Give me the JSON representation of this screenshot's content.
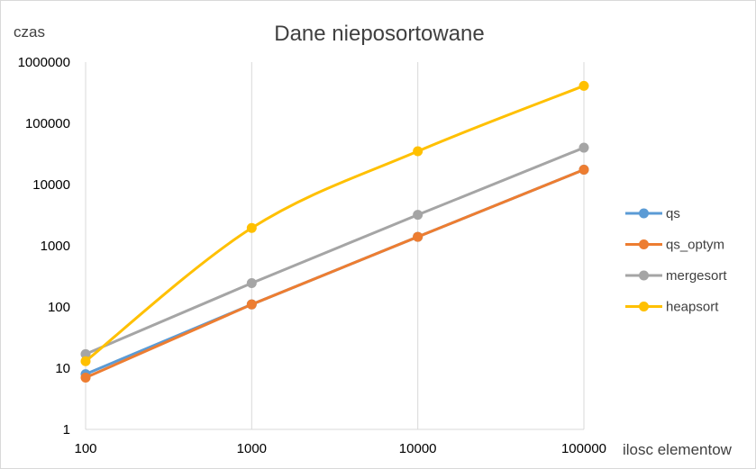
{
  "chart_data": {
    "type": "line",
    "title": "Dane nieposortowane",
    "ylabel": "czas",
    "xlabel": "ilosc elementow",
    "x_scale": "log",
    "y_scale": "log",
    "x": [
      100,
      1000,
      10000,
      100000
    ],
    "x_tick_labels": [
      "100",
      "1000",
      "10000",
      "100000"
    ],
    "y_tick_labels": [
      "1",
      "10",
      "100",
      "1000",
      "10000",
      "100000",
      "1000000"
    ],
    "ylim": [
      1,
      1000000
    ],
    "xlim": [
      100,
      100000
    ],
    "grid": "vertical",
    "legend_position": "right",
    "series": [
      {
        "name": "qs",
        "color": "#5b9bd5",
        "smooth": false,
        "values": [
          8,
          110,
          1400,
          17500
        ]
      },
      {
        "name": "qs_optym",
        "color": "#ed7d31",
        "smooth": false,
        "values": [
          7,
          110,
          1400,
          17500
        ]
      },
      {
        "name": "mergesort",
        "color": "#a5a5a5",
        "smooth": false,
        "values": [
          17,
          245,
          3200,
          40000
        ]
      },
      {
        "name": "heapsort",
        "color": "#ffc000",
        "smooth": true,
        "values": [
          13,
          1950,
          35000,
          410000
        ]
      }
    ]
  }
}
